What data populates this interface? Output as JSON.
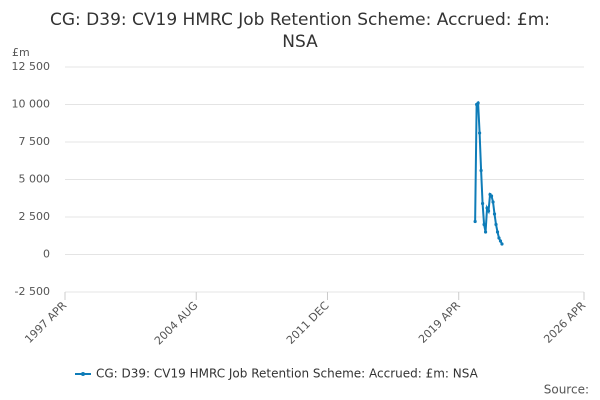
{
  "chart_data": {
    "type": "line",
    "title": "CG: D39: CV19 HMRC Job Retention Scheme: Accrued: £m: NSA",
    "y_label": "£m",
    "source": "Source:",
    "x": [
      "2020 MAR",
      "2020 APR",
      "2020 MAY",
      "2020 JUN",
      "2020 JUL",
      "2020 AUG",
      "2020 SEP",
      "2020 OCT",
      "2020 NOV",
      "2020 DEC",
      "2021 JAN",
      "2021 FEB",
      "2021 MAR",
      "2021 APR",
      "2021 MAY",
      "2021 JUN",
      "2021 JUL",
      "2021 AUG",
      "2021 SEP"
    ],
    "series": [
      {
        "name": "CG: D39: CV19 HMRC Job Retention Scheme: Accrued: £m: NSA",
        "color": "#0e7cb8",
        "values": [
          2200,
          10000,
          10100,
          8100,
          5600,
          3400,
          2000,
          1500,
          3100,
          2900,
          4000,
          3900,
          3500,
          2700,
          2000,
          1500,
          1100,
          900,
          700
        ]
      }
    ],
    "xlim": [
      "1997 APR",
      "2026 APR"
    ],
    "xticks": [
      "1997 APR",
      "2004 AUG",
      "2011 DEC",
      "2019 APR",
      "2026 APR"
    ],
    "ylim": [
      -2500,
      12500
    ],
    "yticks": [
      {
        "value": -2500,
        "label": "-2 500"
      },
      0,
      {
        "value": 2500,
        "label": "2 500"
      },
      {
        "value": 5000,
        "label": "5 000"
      },
      {
        "value": 7500,
        "label": "7 500"
      },
      {
        "value": 10000,
        "label": "10 000"
      },
      {
        "value": 12500,
        "label": "12 500"
      }
    ],
    "grid": true
  }
}
